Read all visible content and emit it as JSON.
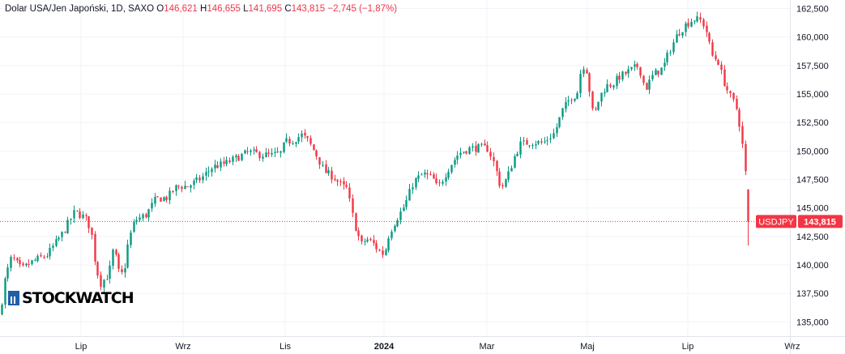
{
  "header": {
    "symbol_name": "Dolar USA/Jen Japoński, 1D, SAXO",
    "open_label": "O",
    "open_value": "146,621",
    "high_label": "H",
    "high_value": "146,655",
    "low_label": "L",
    "low_value": "141,695",
    "close_label": "C",
    "close_value": "143,815",
    "change": "−2,745 (−1,87%)"
  },
  "watermark": {
    "text": "STOCKWATCH"
  },
  "price_tag": {
    "symbol": "USDJPY",
    "price": "143,815"
  },
  "colors": {
    "up": "#089981",
    "down": "#f23645",
    "grid": "#f0f3fa",
    "text": "#131722"
  },
  "chart_data": {
    "type": "candlestick",
    "title": "Dolar USA/Jen Japoński, 1D, SAXO",
    "last_price": 143.815,
    "ylim": [
      133.75,
      163.25
    ],
    "y_ticks": [
      135,
      137.5,
      140,
      142.5,
      145,
      147.5,
      150,
      152.5,
      155,
      157.5,
      160,
      162.5
    ],
    "y_tick_labels": [
      "135,000",
      "137,500",
      "140,000",
      "142,500",
      "145,000",
      "147,500",
      "150,000",
      "152,500",
      "155,000",
      "157,500",
      "160,000",
      "162,500"
    ],
    "x_tick_labels": [
      "Lip",
      "Wrz",
      "Lis",
      "2024",
      "Mar",
      "Maj",
      "Lip",
      "Wrz"
    ],
    "grid": true,
    "close_path": [
      [
        0,
        135.9
      ],
      [
        6,
        138.8
      ],
      [
        14,
        140.7
      ],
      [
        26,
        139.6
      ],
      [
        40,
        140.3
      ],
      [
        58,
        140.9
      ],
      [
        78,
        142.9
      ],
      [
        92,
        144.7
      ],
      [
        105,
        144.1
      ],
      [
        112,
        143.1
      ],
      [
        118,
        139.8
      ],
      [
        124,
        138.4
      ],
      [
        134,
        139.2
      ],
      [
        140,
        141.6
      ],
      [
        146,
        139.4
      ],
      [
        152,
        139.1
      ],
      [
        158,
        142.0
      ],
      [
        166,
        143.9
      ],
      [
        180,
        144.4
      ],
      [
        192,
        145.8
      ],
      [
        206,
        145.9
      ],
      [
        218,
        146.9
      ],
      [
        232,
        146.9
      ],
      [
        248,
        147.6
      ],
      [
        262,
        148.6
      ],
      [
        278,
        148.9
      ],
      [
        292,
        149.4
      ],
      [
        306,
        149.9
      ],
      [
        320,
        149.7
      ],
      [
        334,
        149.6
      ],
      [
        346,
        149.8
      ],
      [
        352,
        150.8
      ],
      [
        360,
        150.9
      ],
      [
        372,
        151.4
      ],
      [
        380,
        150.9
      ],
      [
        390,
        149.7
      ],
      [
        400,
        148.2
      ],
      [
        412,
        147.7
      ],
      [
        422,
        146.9
      ],
      [
        428,
        146.7
      ],
      [
        434,
        144.6
      ],
      [
        440,
        142.9
      ],
      [
        446,
        141.8
      ],
      [
        452,
        142.3
      ],
      [
        460,
        141.9
      ],
      [
        468,
        141.2
      ],
      [
        474,
        140.9
      ],
      [
        480,
        142.8
      ],
      [
        488,
        143.9
      ],
      [
        500,
        145.3
      ],
      [
        510,
        147.3
      ],
      [
        522,
        148.0
      ],
      [
        534,
        147.6
      ],
      [
        540,
        146.7
      ],
      [
        548,
        147.8
      ],
      [
        556,
        148.8
      ],
      [
        566,
        149.8
      ],
      [
        578,
        150.2
      ],
      [
        592,
        150.3
      ],
      [
        602,
        150.2
      ],
      [
        610,
        148.8
      ],
      [
        618,
        146.7
      ],
      [
        626,
        147.7
      ],
      [
        634,
        149.4
      ],
      [
        642,
        150.6
      ],
      [
        656,
        150.8
      ],
      [
        670,
        150.7
      ],
      [
        684,
        151.6
      ],
      [
        694,
        153.6
      ],
      [
        704,
        154.7
      ],
      [
        712,
        155.0
      ],
      [
        718,
        157.7
      ],
      [
        724,
        157.0
      ],
      [
        732,
        152.9
      ],
      [
        740,
        154.8
      ],
      [
        748,
        155.7
      ],
      [
        756,
        155.9
      ],
      [
        764,
        156.5
      ],
      [
        776,
        157.0
      ],
      [
        788,
        157.5
      ],
      [
        796,
        155.4
      ],
      [
        806,
        156.7
      ],
      [
        818,
        157.3
      ],
      [
        826,
        158.8
      ],
      [
        836,
        160.3
      ],
      [
        846,
        161.1
      ],
      [
        856,
        161.6
      ],
      [
        866,
        161.4
      ],
      [
        872,
        160.4
      ],
      [
        878,
        158.4
      ],
      [
        886,
        157.9
      ],
      [
        892,
        156.3
      ],
      [
        900,
        154.9
      ],
      [
        908,
        153.9
      ],
      [
        914,
        151.8
      ],
      [
        918,
        149.1
      ],
      [
        922,
        146.5
      ],
      [
        925,
        143.815
      ]
    ]
  }
}
